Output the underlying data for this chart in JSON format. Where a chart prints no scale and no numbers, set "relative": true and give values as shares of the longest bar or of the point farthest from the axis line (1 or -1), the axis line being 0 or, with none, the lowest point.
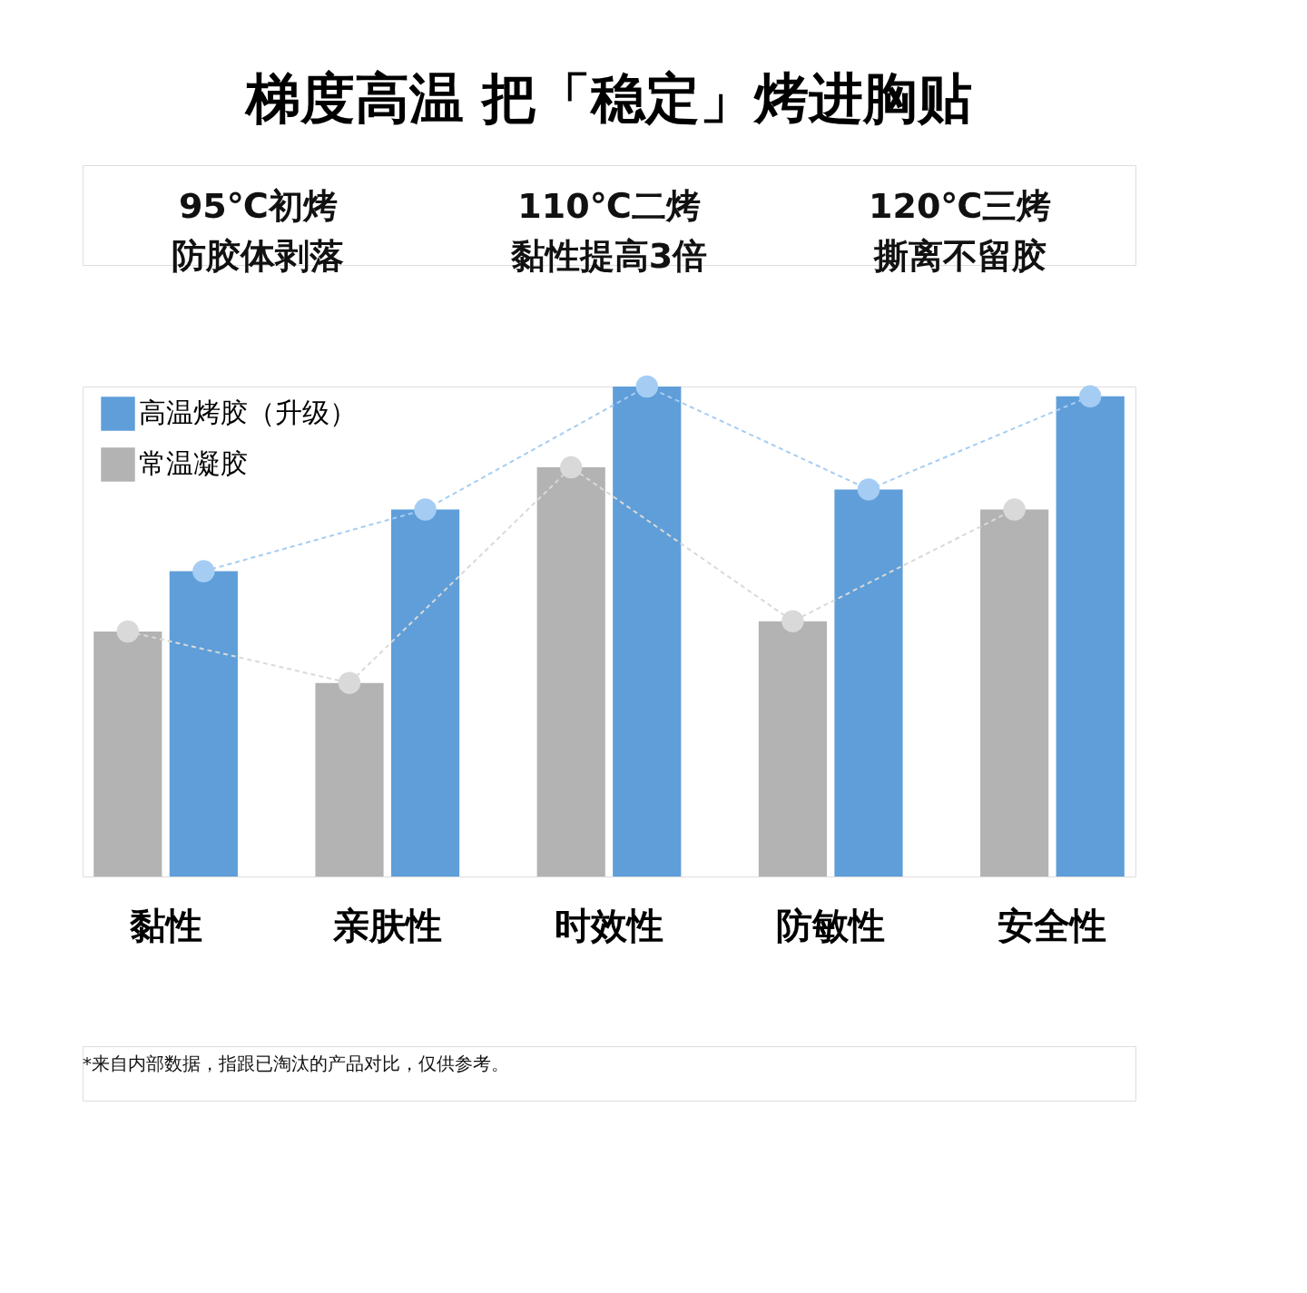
{
  "chart_data": {
    "type": "bar",
    "relative": true,
    "title": "梯度高温 把「稳定」烤进胸贴",
    "annotations": [
      "95℃初烤",
      "防胶体剥落",
      "110℃二烤",
      "黏性提高3倍",
      "120℃三烤",
      "撕离不留胶",
      "*来自内部数据，指跟已淘汰的产品对比，仅供参考。"
    ],
    "categories": [
      "黏性",
      "亲肤性",
      "时效性",
      "防敏性",
      "安全性"
    ],
    "legend": "top left",
    "series": [
      {
        "name": "常温凝胶",
        "color": "#b3b3b3",
        "values": [
          0.5,
          0.395,
          0.835,
          0.521,
          0.749
        ]
      },
      {
        "name": "高温烤胶（升级）",
        "color": "#5f9ed9",
        "values": [
          0.623,
          0.749,
          1.0,
          0.79,
          0.98
        ]
      },
      {
        "type": "line",
        "color": "#d9d9d9",
        "marker": "circle",
        "line_style": "dashed",
        "values": [
          0.5,
          0.395,
          0.835,
          0.521,
          0.749
        ]
      },
      {
        "type": "line",
        "color": "#a5cdf3",
        "marker": "circle",
        "line_style": "dashed",
        "values": [
          0.623,
          0.749,
          1.0,
          0.79,
          0.98
        ]
      }
    ]
  }
}
